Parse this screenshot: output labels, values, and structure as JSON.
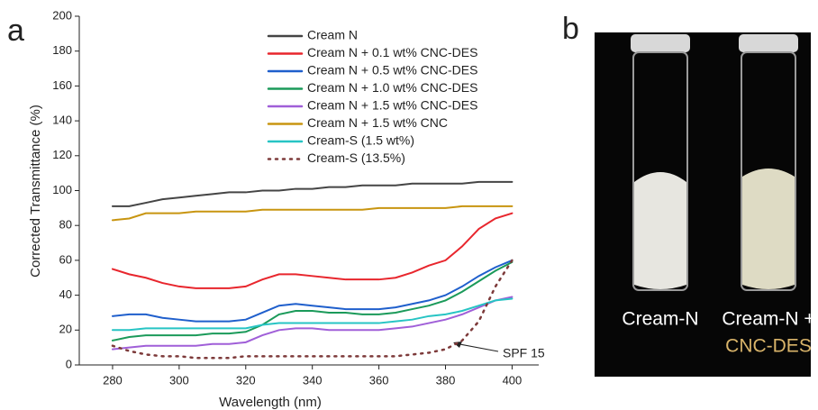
{
  "chart_data": {
    "type": "line",
    "panel_label": "a",
    "xlabel": "Wavelength (nm)",
    "ylabel": "Corrected Transmittance (%)",
    "x": [
      280,
      285,
      290,
      295,
      300,
      305,
      310,
      315,
      320,
      325,
      330,
      335,
      340,
      345,
      350,
      355,
      360,
      365,
      370,
      375,
      380,
      385,
      390,
      395,
      400
    ],
    "series": [
      {
        "name": "Cream N",
        "color": "#454545",
        "values": [
          91,
          91,
          93,
          95,
          96,
          97,
          98,
          99,
          99,
          100,
          100,
          101,
          101,
          102,
          102,
          103,
          103,
          103,
          104,
          104,
          104,
          104,
          105,
          105,
          105
        ]
      },
      {
        "name": "Cream N + 0.1 wt% CNC-DES",
        "color": "#e8262d",
        "values": [
          55,
          52,
          50,
          47,
          45,
          44,
          44,
          44,
          45,
          49,
          52,
          52,
          51,
          50,
          49,
          49,
          49,
          50,
          53,
          57,
          60,
          68,
          78,
          84,
          87
        ]
      },
      {
        "name": "Cream N + 0.5 wt% CNC-DES",
        "color": "#1f5fcc",
        "values": [
          28,
          29,
          29,
          27,
          26,
          25,
          25,
          25,
          26,
          30,
          34,
          35,
          34,
          33,
          32,
          32,
          32,
          33,
          35,
          37,
          40,
          45,
          51,
          56,
          60
        ]
      },
      {
        "name": "Cream N + 1.0 wt% CNC-DES",
        "color": "#1b9a5a",
        "values": [
          14,
          16,
          17,
          17,
          17,
          17,
          18,
          18,
          19,
          23,
          29,
          31,
          31,
          30,
          30,
          29,
          29,
          30,
          32,
          34,
          37,
          42,
          48,
          54,
          59
        ]
      },
      {
        "name": "Cream N + 1.5 wt% CNC-DES",
        "color": "#a05fd8",
        "values": [
          9,
          10,
          11,
          11,
          11,
          11,
          12,
          12,
          13,
          17,
          20,
          21,
          21,
          20,
          20,
          20,
          20,
          21,
          22,
          24,
          26,
          29,
          33,
          37,
          39
        ]
      },
      {
        "name": "Cream N + 1.5 wt% CNC",
        "color": "#c89510",
        "values": [
          83,
          84,
          87,
          87,
          87,
          88,
          88,
          88,
          88,
          89,
          89,
          89,
          89,
          89,
          89,
          89,
          90,
          90,
          90,
          90,
          90,
          91,
          91,
          91,
          91
        ]
      },
      {
        "name": "Cream-S (1.5 wt%)",
        "color": "#27c4c4",
        "values": [
          20,
          20,
          21,
          21,
          21,
          21,
          21,
          21,
          21,
          23,
          24,
          24,
          24,
          24,
          24,
          24,
          24,
          25,
          26,
          28,
          29,
          31,
          34,
          37,
          38
        ]
      },
      {
        "name": "Cream-S (13.5%)",
        "color": "#7d3a3a",
        "dash": "dotted",
        "values": [
          11,
          8,
          6,
          5,
          5,
          4,
          4,
          4,
          5,
          5,
          5,
          5,
          5,
          5,
          5,
          5,
          5,
          5,
          6,
          7,
          9,
          14,
          25,
          45,
          60
        ]
      }
    ],
    "annotation": "SPF 15",
    "xlim": [
      270,
      408
    ],
    "xticks": [
      280,
      300,
      320,
      340,
      360,
      380,
      400
    ],
    "ylim": [
      0,
      200
    ],
    "yticks": [
      0,
      20,
      40,
      60,
      80,
      100,
      120,
      140,
      160,
      180,
      200
    ]
  },
  "photo": {
    "panel_label": "b",
    "labels": [
      "Cream-N",
      "Cream-N +",
      "CNC-DES"
    ]
  }
}
